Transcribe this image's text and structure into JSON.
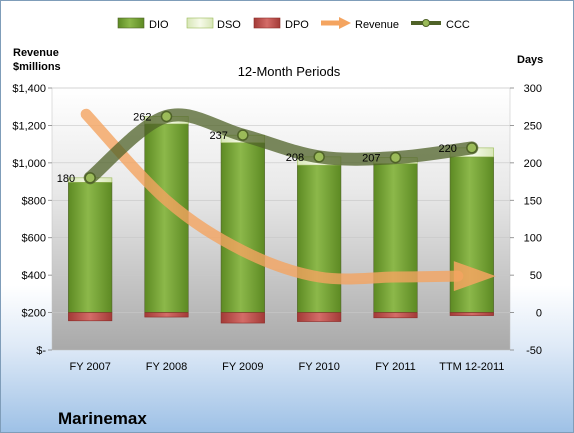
{
  "chart_data": {
    "type": "bar",
    "title": "12-Month Periods",
    "company": "Marinemax",
    "left_axis_label": [
      "Revenue",
      "$millions"
    ],
    "right_axis_label": "Days",
    "categories": [
      "FY 2007",
      "FY 2008",
      "FY 2009",
      "FY 2010",
      "FY 2011",
      "TTM 12-2011"
    ],
    "left_ylim": [
      0,
      1400
    ],
    "left_ticks": [
      {
        "v": 0,
        "label": "$-"
      },
      {
        "v": 200,
        "label": "$200"
      },
      {
        "v": 400,
        "label": "$400"
      },
      {
        "v": 600,
        "label": "$600"
      },
      {
        "v": 800,
        "label": "$800"
      },
      {
        "v": 1000,
        "label": "$1,000"
      },
      {
        "v": 1200,
        "label": "$1,200"
      },
      {
        "v": 1400,
        "label": "$1,400"
      }
    ],
    "right_ylim": [
      -50,
      300
    ],
    "right_ticks": [
      {
        "v": -50,
        "label": "-50"
      },
      {
        "v": 0,
        "label": "0"
      },
      {
        "v": 50,
        "label": "50"
      },
      {
        "v": 100,
        "label": "100"
      },
      {
        "v": 150,
        "label": "150"
      },
      {
        "v": 200,
        "label": "200"
      },
      {
        "v": 250,
        "label": "250"
      },
      {
        "v": 300,
        "label": "300"
      }
    ],
    "legend_position": "top",
    "series": [
      {
        "name": "DIO",
        "kind": "bar",
        "axis": "days",
        "color": "#6e9a2c",
        "values": [
          174,
          252,
          227,
          197,
          199,
          208
        ]
      },
      {
        "name": "DSO",
        "kind": "bar-stack",
        "axis": "days",
        "color": "#eaf2d3",
        "values": [
          6,
          10,
          10,
          11,
          8,
          12
        ]
      },
      {
        "name": "DPO",
        "kind": "bar-negative",
        "axis": "days",
        "color": "#c0504d",
        "values": [
          -11,
          -6,
          -14,
          -12,
          -7,
          -4
        ]
      },
      {
        "name": "Revenue",
        "kind": "arrow-line",
        "axis": "revenue",
        "color": "#f4a460",
        "values": [
          1260,
          800,
          530,
          390,
          390,
          395
        ]
      },
      {
        "name": "CCC",
        "kind": "line",
        "axis": "days",
        "color": "#4f6228",
        "values": [
          180,
          262,
          237,
          208,
          207,
          220
        ]
      }
    ]
  }
}
